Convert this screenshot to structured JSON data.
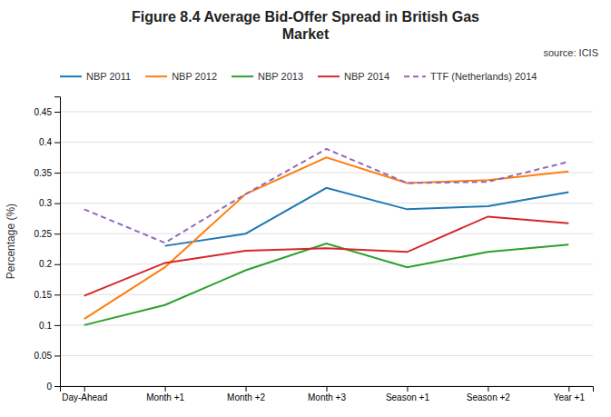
{
  "chart_data": {
    "type": "line",
    "title": "Figure 8.4 Average Bid-Offer Spread in British Gas\nMarket",
    "annotations": [
      "source: ICIS"
    ],
    "y_label": "Percentage (%)",
    "categories": [
      "Day-Ahead",
      "Month +1",
      "Month +2",
      "Month +3",
      "Season +1",
      "Season +2",
      "Year +1"
    ],
    "ylim": [
      0,
      0.475
    ],
    "yticks": [
      0,
      0.05,
      0.1,
      0.15,
      0.2,
      0.25,
      0.3,
      0.35,
      0.4,
      0.45
    ],
    "grid": true,
    "legend": "top",
    "series": [
      {
        "name": "NBP 2011",
        "line_style": "solid",
        "values": [
          null,
          0.23,
          0.25,
          0.325,
          0.29,
          0.295,
          0.318
        ]
      },
      {
        "name": "NBP 2012",
        "line_style": "solid",
        "values": [
          0.11,
          0.195,
          0.315,
          0.375,
          0.333,
          0.338,
          0.352
        ]
      },
      {
        "name": "NBP 2013",
        "line_style": "solid",
        "values": [
          0.1,
          0.133,
          0.19,
          0.234,
          0.195,
          0.22,
          0.232
        ]
      },
      {
        "name": "NBP 2014",
        "line_style": "solid",
        "values": [
          0.148,
          0.202,
          0.222,
          0.226,
          0.22,
          0.278,
          0.267
        ]
      },
      {
        "name": "TTF (Netherlands) 2014",
        "line_style": "dashed",
        "values": [
          0.29,
          0.235,
          0.315,
          0.389,
          0.333,
          0.335,
          0.368
        ]
      }
    ]
  }
}
